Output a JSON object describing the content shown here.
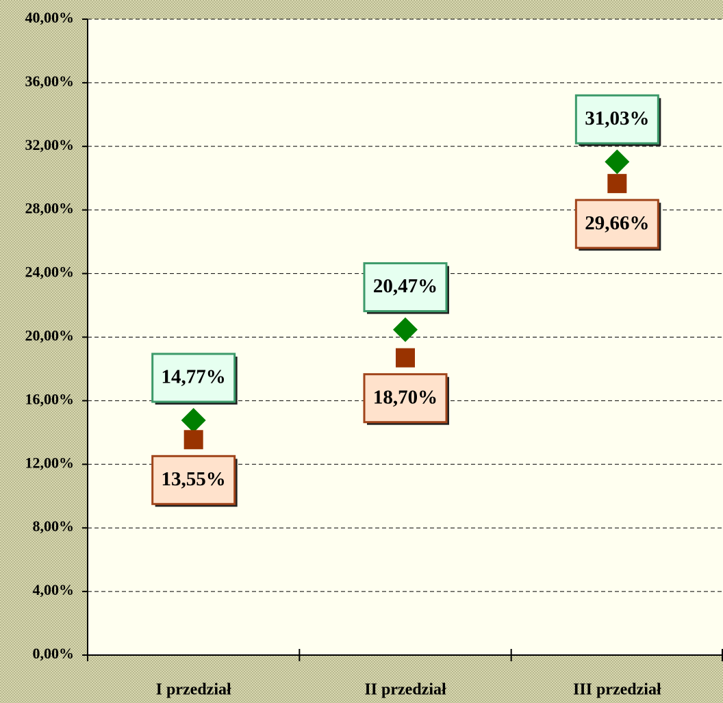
{
  "chart_data": {
    "type": "scatter",
    "categories": [
      "I przedział",
      "II przedział",
      "III przedział"
    ],
    "series": [
      {
        "color": "#008000",
        "marker": "diamond",
        "label_position": "above",
        "label_fill": "#e6fff0",
        "label_border": "#3c9a6a",
        "values": [
          14.77,
          20.47,
          31.03
        ],
        "value_labels": [
          "14,77%",
          "20,47%",
          "31,03%"
        ]
      },
      {
        "color": "#993300",
        "marker": "square",
        "label_position": "below",
        "label_fill": "#ffe2cc",
        "label_border": "#a0441a",
        "values": [
          13.55,
          18.7,
          29.66
        ],
        "value_labels": [
          "13,55%",
          "18,70%",
          "29,66%"
        ]
      }
    ],
    "ylim": [
      0,
      40
    ],
    "yticks": [
      {
        "value": 0,
        "label": "0,00%"
      },
      {
        "value": 4,
        "label": "4,00%"
      },
      {
        "value": 8,
        "label": "8,00%"
      },
      {
        "value": 12,
        "label": "12,00%"
      },
      {
        "value": 16,
        "label": "16,00%"
      },
      {
        "value": 20,
        "label": "20,00%"
      },
      {
        "value": 24,
        "label": "24,00%"
      },
      {
        "value": 28,
        "label": "28,00%"
      },
      {
        "value": 32,
        "label": "32,00%"
      },
      {
        "value": 36,
        "label": "36,00%"
      },
      {
        "value": 40,
        "label": "40,00%"
      }
    ],
    "grid": true
  }
}
